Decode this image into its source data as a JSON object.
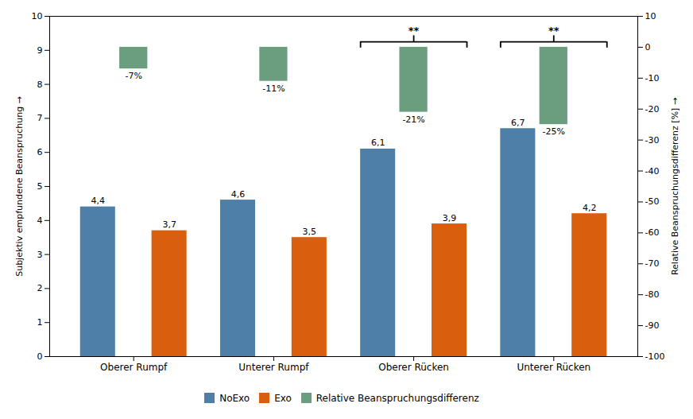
{
  "chart_data": {
    "type": "bar",
    "categories": [
      "Oberer Rumpf",
      "Unterer Rumpf",
      "Oberer Rücken",
      "Unterer Rücken"
    ],
    "series": [
      {
        "name": "NoExo",
        "color": "#4e7fa8",
        "values": [
          4.4,
          4.6,
          6.1,
          6.7
        ],
        "value_labels": [
          "4,4",
          "4,6",
          "6,1",
          "6,7"
        ]
      },
      {
        "name": "Exo",
        "color": "#d95f0e",
        "values": [
          3.7,
          3.5,
          3.9,
          4.2
        ],
        "value_labels": [
          "3,7",
          "3,5",
          "3,9",
          "4,2"
        ]
      },
      {
        "name": "Relative Beanspruchungsdifferenz",
        "color": "#6b9e7e",
        "values": [
          -7,
          -11,
          -21,
          -25
        ],
        "value_labels": [
          "-7%",
          "-11%",
          "-21%",
          "-25%"
        ],
        "axis": "y2"
      }
    ],
    "ylabel": "Subjektiv empfundene Beanspruchung",
    "y2label": "Relative Beanspruchungsdifferenz [%]",
    "ylim": [
      0,
      10
    ],
    "yticks": [
      0,
      1,
      2,
      3,
      4,
      5,
      6,
      7,
      8,
      9,
      10
    ],
    "y2lim": [
      -100,
      10
    ],
    "y2ticks": [
      -100,
      -90,
      -80,
      -70,
      -60,
      -50,
      -40,
      -30,
      -20,
      -10,
      0,
      10
    ],
    "data_labels": true,
    "grid": false,
    "legend": "bottom",
    "annotations": [
      {
        "text": "**",
        "category": "Oberer Rücken"
      },
      {
        "text": "**",
        "category": "Unterer Rücken"
      }
    ]
  }
}
